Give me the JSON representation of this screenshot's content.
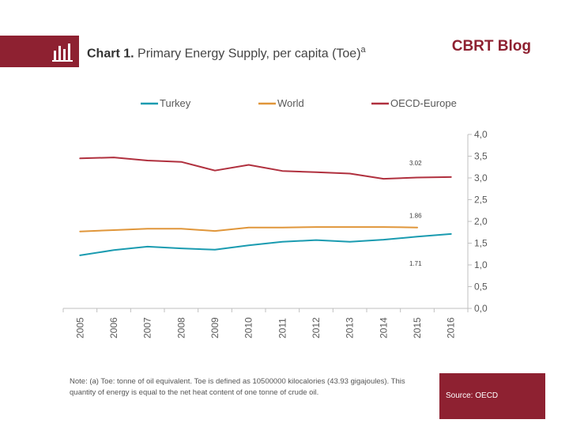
{
  "header": {
    "chart_number": "Chart 1.",
    "title": "Primary Energy Supply, per capita (Toe)",
    "title_superscript": "a",
    "brand": "CBRT Blog"
  },
  "footer": {
    "note": "Note: (a) Toe: tonne of oil equivalent. Toe is defined as 10500000 kilocalories (43.93 gigajoules). This quantity of energy is equal to the net heat content of one tonne of crude oil.",
    "source": "Source: OECD"
  },
  "chart_data": {
    "type": "line",
    "title": "",
    "xlabel": "",
    "ylabel": "",
    "categories": [
      "2005",
      "2006",
      "2007",
      "2008",
      "2009",
      "2010",
      "2011",
      "2012",
      "2013",
      "2014",
      "2015",
      "2016"
    ],
    "ylim": [
      0,
      4
    ],
    "yticks": [
      "0,0",
      "0,5",
      "1,0",
      "1,5",
      "2,0",
      "2,5",
      "3,0",
      "3,5",
      "4,0"
    ],
    "ytick_values": [
      0,
      0.5,
      1,
      1.5,
      2,
      2.5,
      3,
      3.5,
      4
    ],
    "y_axis_side": "right",
    "grid": false,
    "legend_position": "top",
    "series": [
      {
        "name": "Turkey",
        "color": "#1a9bb0",
        "values": [
          1.22,
          1.34,
          1.42,
          1.38,
          1.35,
          1.45,
          1.53,
          1.57,
          1.53,
          1.58,
          1.65,
          1.71
        ]
      },
      {
        "name": "World",
        "color": "#e0963a",
        "values": [
          1.77,
          1.8,
          1.83,
          1.83,
          1.78,
          1.86,
          1.86,
          1.87,
          1.87,
          1.87,
          1.86,
          null
        ]
      },
      {
        "name": "OECD-Europe",
        "color": "#b0303e",
        "values": [
          3.45,
          3.47,
          3.4,
          3.37,
          3.17,
          3.3,
          3.16,
          3.13,
          3.1,
          2.98,
          3.01,
          3.02
        ]
      }
    ],
    "annotations": [
      {
        "text": "3.02",
        "series": "OECD-Europe",
        "x": "2015",
        "y": 3.02
      },
      {
        "text": "1.86",
        "series": "World",
        "x": "2015",
        "y": 1.86
      },
      {
        "text": "1.71",
        "series": "Turkey",
        "x": "2015",
        "y": 1.71
      }
    ]
  }
}
